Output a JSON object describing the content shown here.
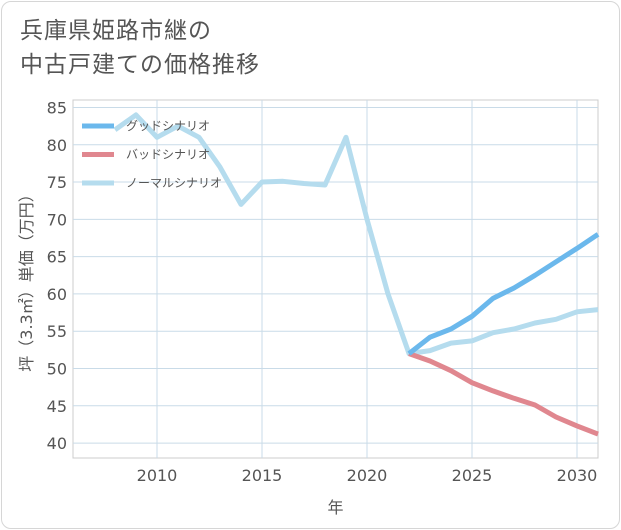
{
  "title_lines": [
    "兵庫県姫路市継の",
    "中古戸建ての価格推移"
  ],
  "chart_data": {
    "type": "line",
    "xlabel": "年",
    "ylabel": "坪（3.3㎡）単価（万円）",
    "xlim": [
      2006,
      2031
    ],
    "ylim": [
      38,
      86
    ],
    "xticks": [
      2010,
      2015,
      2020,
      2025,
      2030
    ],
    "yticks": [
      40,
      45,
      50,
      55,
      60,
      65,
      70,
      75,
      80,
      85
    ],
    "grid": true,
    "legend_position": "top-left",
    "series": [
      {
        "name": "グッドシナリオ",
        "color": "#6bb8ec",
        "x": [
          2022,
          2023,
          2024,
          2025,
          2026,
          2027,
          2028,
          2029,
          2030,
          2031
        ],
        "y": [
          52.0,
          54.2,
          55.3,
          57.0,
          59.4,
          60.8,
          62.5,
          64.3,
          66.1,
          68.0
        ]
      },
      {
        "name": "バッドシナリオ",
        "color": "#e0878f",
        "x": [
          2022,
          2023,
          2024,
          2025,
          2026,
          2027,
          2028,
          2029,
          2030,
          2031
        ],
        "y": [
          52.0,
          51.0,
          49.7,
          48.1,
          47.0,
          46.0,
          45.1,
          43.5,
          42.3,
          41.2
        ]
      },
      {
        "name": "ノーマルシナリオ",
        "color": "#b5dcee",
        "x": [
          2008,
          2009,
          2010,
          2011,
          2012,
          2013,
          2014,
          2015,
          2016,
          2017,
          2018,
          2019,
          2020,
          2021,
          2022,
          2023,
          2024,
          2025,
          2026,
          2027,
          2028,
          2029,
          2030,
          2031
        ],
        "y": [
          82.0,
          84.0,
          81.0,
          82.5,
          81.0,
          77.0,
          72.0,
          75.0,
          75.1,
          74.8,
          74.6,
          81.0,
          70.0,
          60.0,
          52.0,
          52.4,
          53.4,
          53.7,
          54.8,
          55.3,
          56.1,
          56.6,
          57.6,
          57.9
        ]
      }
    ]
  }
}
